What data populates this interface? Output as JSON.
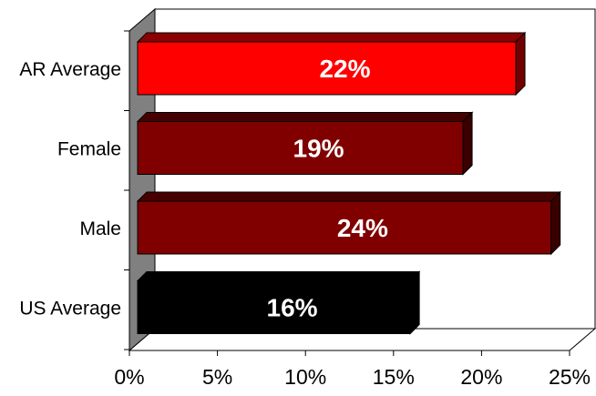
{
  "chart_data": {
    "type": "bar",
    "orientation": "horizontal",
    "style": "3d",
    "categories": [
      "AR Average",
      "Female",
      "Male",
      "US Average"
    ],
    "values": [
      22,
      19,
      24,
      16
    ],
    "data_labels": [
      "22%",
      "19%",
      "24%",
      "16%"
    ],
    "bar_colors": [
      "#ff0000",
      "#800000",
      "#800000",
      "#000000"
    ],
    "xlim": [
      0,
      25
    ],
    "x_ticks": [
      0,
      5,
      10,
      15,
      20,
      25
    ],
    "x_tick_labels": [
      "0%",
      "5%",
      "10%",
      "15%",
      "20%",
      "25%"
    ],
    "title": "",
    "xlabel": "",
    "ylabel": "",
    "grid": false,
    "legend": "none"
  }
}
